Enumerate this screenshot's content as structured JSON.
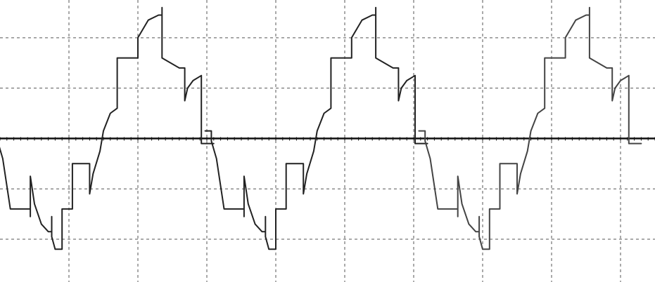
{
  "chart_data": {
    "type": "line",
    "title": "",
    "xlabel": "",
    "ylabel": "",
    "grid": true,
    "legend": "none",
    "xlim": [
      0,
      9.5
    ],
    "ylim": [
      -2.85,
      2.75
    ],
    "x_grid_step": 1,
    "y_grid_step": 1,
    "zero_line": true,
    "colors": {
      "grid": "#555555",
      "axis": "#111111",
      "trace": "#222222",
      "trace_alt": "#444444"
    },
    "cycle_period": 3.1,
    "cycle_count": 3,
    "cycle_colors": [
      "#222222",
      "#222222",
      "#444444"
    ],
    "waveform_one_period": [
      [
        -0.125,
        0.15
      ],
      [
        -0.035,
        0.15
      ],
      [
        -0.035,
        -0.05
      ],
      [
        0.04,
        -0.4
      ],
      [
        0.15,
        -1.4
      ],
      [
        0.15,
        -1.4
      ],
      [
        0.44,
        -1.4
      ],
      [
        0.44,
        -1.55
      ],
      [
        0.44,
        -0.75
      ],
      [
        0.5,
        -1.3
      ],
      [
        0.6,
        -1.7
      ],
      [
        0.7,
        -1.85
      ],
      [
        0.75,
        -1.85
      ],
      [
        0.75,
        -1.55
      ],
      [
        0.75,
        -1.95
      ],
      [
        0.8,
        -2.2
      ],
      [
        0.9,
        -2.2
      ],
      [
        0.9,
        -1.4
      ],
      [
        1.05,
        -1.4
      ],
      [
        1.05,
        -0.5
      ],
      [
        1.3,
        -0.5
      ],
      [
        1.3,
        -1.1
      ],
      [
        1.35,
        -0.7
      ],
      [
        1.45,
        -0.25
      ],
      [
        1.5,
        0.15
      ],
      [
        1.6,
        0.5
      ],
      [
        1.7,
        0.6
      ],
      [
        1.7,
        1.6
      ],
      [
        2.0,
        1.6
      ],
      [
        2.0,
        2.0
      ],
      [
        2.15,
        2.35
      ],
      [
        2.3,
        2.45
      ],
      [
        2.35,
        2.45
      ],
      [
        2.35,
        2.6
      ],
      [
        2.35,
        1.6
      ],
      [
        2.6,
        1.4
      ],
      [
        2.68,
        1.4
      ],
      [
        2.68,
        0.75
      ],
      [
        2.72,
        1.0
      ],
      [
        2.8,
        1.15
      ],
      [
        2.92,
        1.25
      ],
      [
        2.92,
        -0.1
      ],
      [
        3.1,
        -0.1
      ]
    ]
  }
}
